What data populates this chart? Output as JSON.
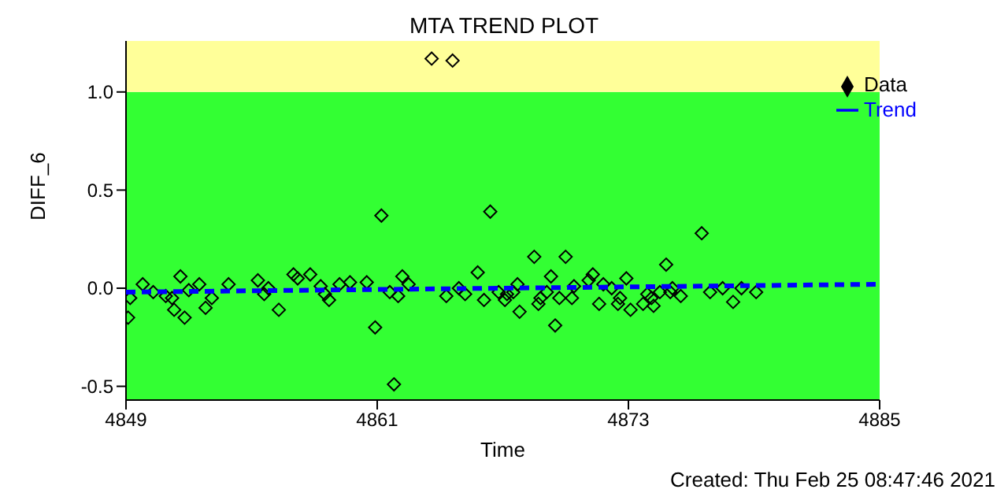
{
  "chart_data": {
    "type": "scatter",
    "title": "MTA TREND PLOT",
    "xlabel": "Time",
    "ylabel": "DIFF_6",
    "annotations": [
      "Created: Thu Feb 25 08:47:46 2021"
    ],
    "xlim": [
      4849,
      4885
    ],
    "xticks": [
      4849,
      4861,
      4873,
      4885
    ],
    "ylim": [
      -0.57,
      1.26
    ],
    "yticks": [
      -0.5,
      {
        "value": 0,
        "label": "0.0"
      },
      0.5,
      {
        "value": 1,
        "label": "1.0"
      }
    ],
    "bands": [
      {
        "axis": "y",
        "from": -0.57,
        "to": 1.0,
        "color": "#33ff33"
      },
      {
        "axis": "y",
        "from": 1.0,
        "to": 1.26,
        "color": "#ffff99"
      }
    ],
    "legend": "top right",
    "series": [
      {
        "name": "Data",
        "color": "#000000",
        "marker": "diamond",
        "x": [
          4849.1,
          4849.2,
          4849.8,
          4850.3,
          4850.9,
          4851.2,
          4851.3,
          4851.6,
          4851.8,
          4852.0,
          4852.5,
          4852.8,
          4853.1,
          4853.9,
          4855.3,
          4855.6,
          4855.8,
          4856.3,
          4857.0,
          4857.2,
          4857.8,
          4858.3,
          4858.5,
          4858.7,
          4859.2,
          4859.7,
          4860.5,
          4860.9,
          4861.2,
          4861.6,
          4861.8,
          4862.0,
          4862.2,
          4862.5,
          4863.6,
          4864.3,
          4864.6,
          4864.9,
          4865.2,
          4865.8,
          4866.1,
          4866.4,
          4866.8,
          4867.1,
          4867.2,
          4867.5,
          4867.7,
          4867.8,
          4868.5,
          4868.7,
          4868.8,
          4869.1,
          4869.3,
          4869.5,
          4869.7,
          4870.0,
          4870.3,
          4870.4,
          4871.1,
          4871.3,
          4871.6,
          4871.8,
          4872.2,
          4872.5,
          4872.6,
          4872.9,
          4873.1,
          4873.7,
          4873.9,
          4874.1,
          4874.2,
          4874.5,
          4874.8,
          4875.0,
          4875.1,
          4875.5,
          4876.5,
          4876.9,
          4877.5,
          4878.0,
          4878.4,
          4879.1
        ],
        "values": [
          -0.15,
          -0.05,
          0.02,
          -0.02,
          -0.04,
          -0.05,
          -0.11,
          0.06,
          -0.15,
          -0.01,
          0.02,
          -0.1,
          -0.05,
          0.02,
          0.04,
          -0.03,
          0.0,
          -0.11,
          0.07,
          0.05,
          0.07,
          0.01,
          -0.03,
          -0.06,
          0.02,
          0.03,
          0.03,
          -0.2,
          0.37,
          -0.02,
          -0.49,
          -0.04,
          0.06,
          0.02,
          1.17,
          -0.04,
          1.16,
          0.0,
          -0.03,
          0.08,
          -0.06,
          0.39,
          -0.02,
          -0.06,
          -0.03,
          -0.02,
          0.02,
          -0.12,
          0.16,
          -0.08,
          -0.05,
          -0.02,
          0.06,
          -0.19,
          -0.05,
          0.16,
          -0.05,
          0.01,
          0.04,
          0.07,
          -0.08,
          0.02,
          0.0,
          -0.08,
          -0.05,
          0.05,
          -0.11,
          -0.08,
          -0.03,
          -0.05,
          -0.09,
          -0.02,
          0.12,
          -0.02,
          0.0,
          -0.04,
          0.28,
          -0.02,
          0.0,
          -0.07,
          0.0,
          -0.02
        ]
      },
      {
        "name": "Trend",
        "type": "line",
        "color": "#0000ff",
        "line_style": "dashed",
        "x": [
          4849,
          4885
        ],
        "values": [
          -0.02,
          0.02
        ]
      }
    ]
  }
}
